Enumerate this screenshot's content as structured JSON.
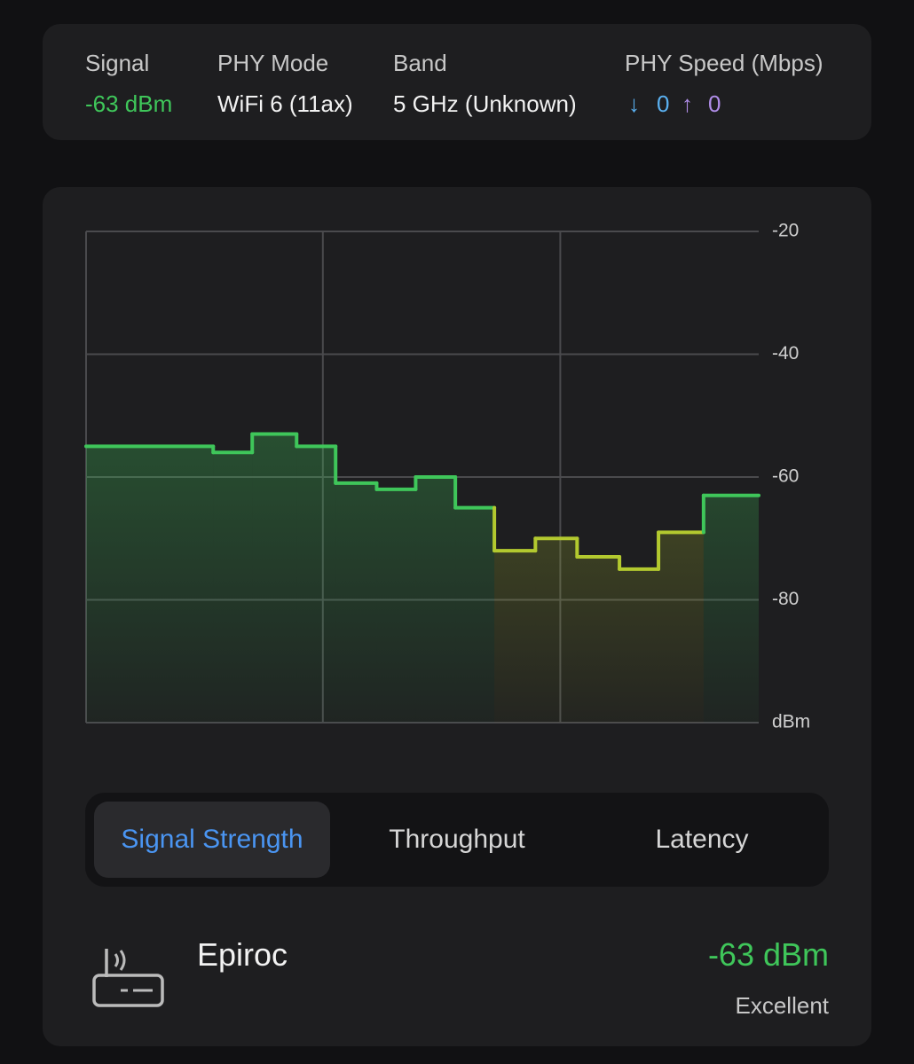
{
  "info": {
    "signal_label": "Signal",
    "signal_value": "-63 dBm",
    "phy_mode_label": "PHY Mode",
    "phy_mode_value": "WiFi 6 (11ax)",
    "band_label": "Band",
    "band_value": "5 GHz (Unknown)",
    "speed_label": "PHY Speed (Mbps)",
    "download": 0,
    "upload": 0
  },
  "chart_data": {
    "type": "line",
    "categories": [
      null,
      null,
      null,
      null,
      null,
      null,
      null,
      null,
      null,
      null,
      null,
      null,
      null,
      null
    ],
    "values": [
      -55,
      -56,
      -53,
      -55,
      -61,
      -62,
      -60,
      -65,
      -72,
      -70,
      -73,
      -75,
      -69,
      -63
    ],
    "colors": [
      "#3fc65a",
      "#3fc65a",
      "#3fc65a",
      "#3fc65a",
      "#3fc65a",
      "#3fc65a",
      "#3fc65a",
      "#3fc65a",
      "#b3c92f",
      "#b3c92f",
      "#b3c92f",
      "#b3c92f",
      "#b3c92f",
      "#3fc65a"
    ],
    "ylim": [
      -100,
      -20
    ],
    "yticks": [
      -20,
      -40,
      -60,
      -80,
      {
        "value": -100,
        "label": "dBm"
      }
    ],
    "grid": true
  },
  "tabs": [
    "Signal Strength",
    "Throughput",
    "Latency"
  ],
  "network": {
    "name": "Epiroc",
    "signal": "-63 dBm",
    "quality": "Excellent"
  }
}
